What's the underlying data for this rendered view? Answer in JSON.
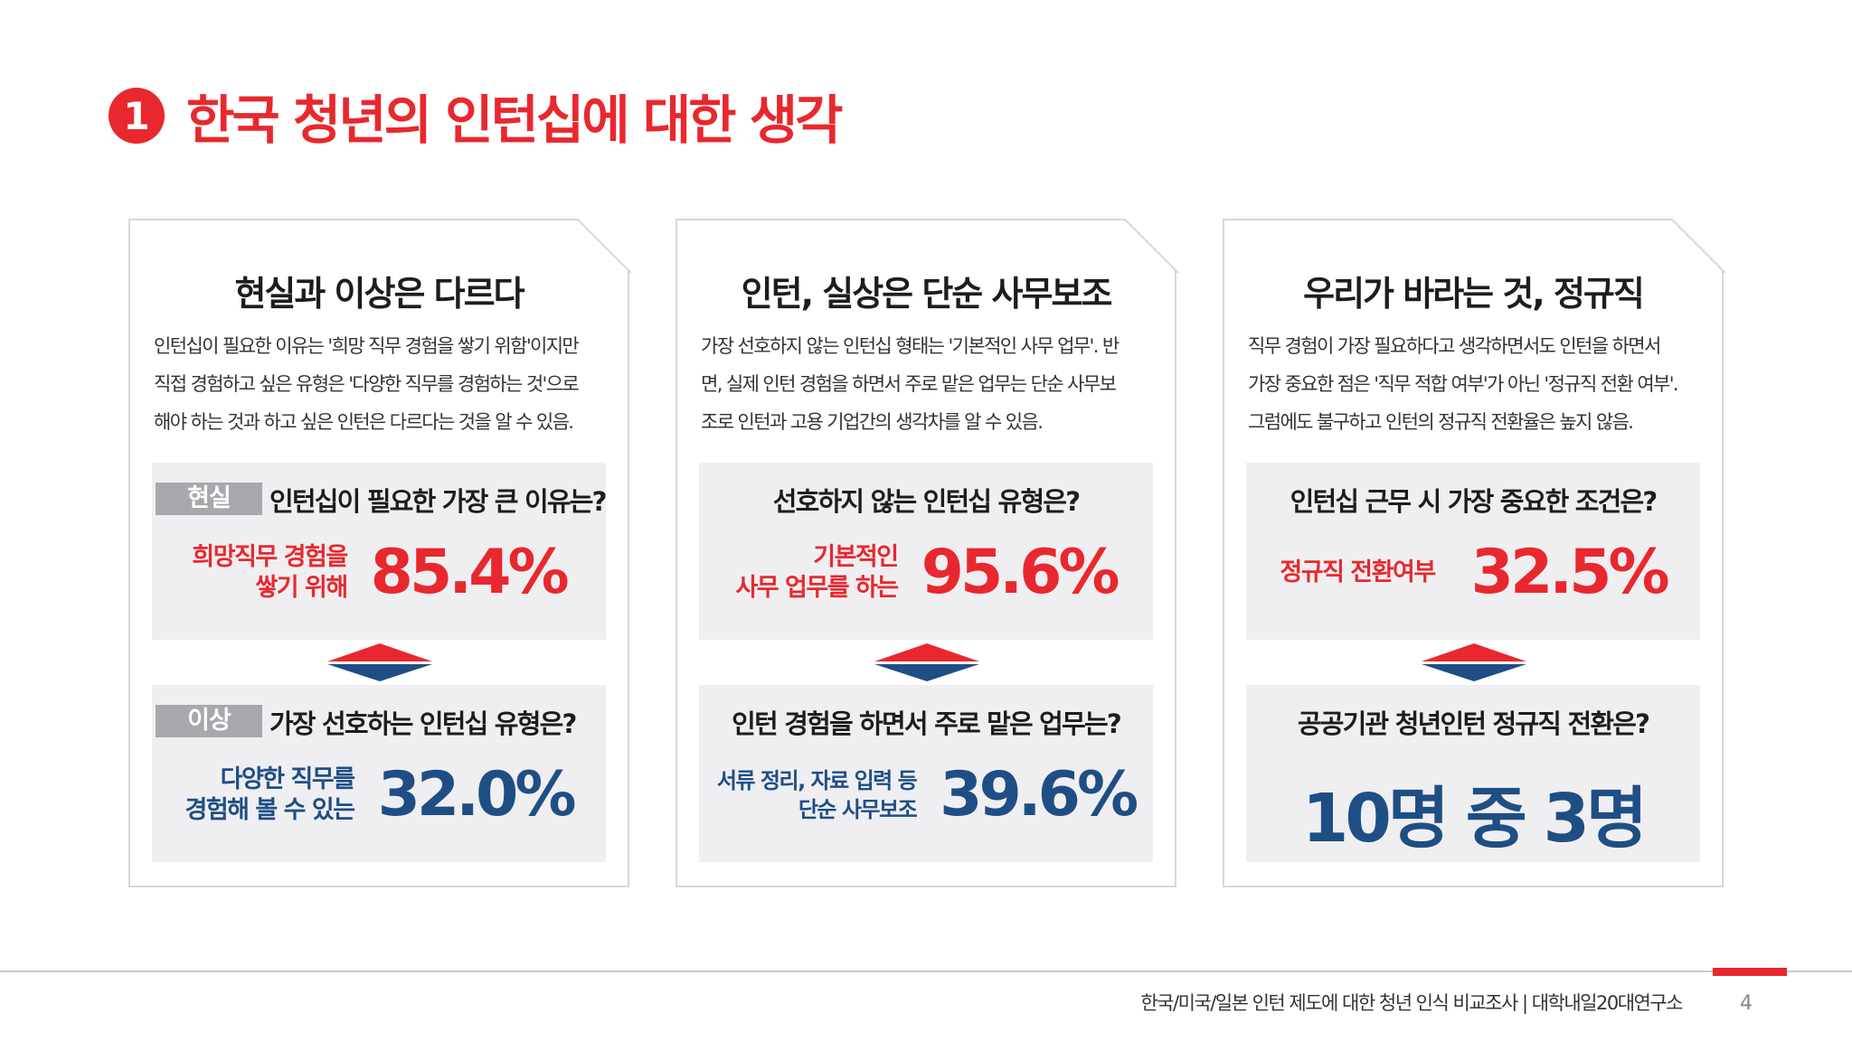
{
  "title": {
    "number": "1",
    "text": "한국 청년의 인턴십에 대한 생각"
  },
  "colors": {
    "accent_red": "#e8282e",
    "navy": "#1f4e84",
    "box_bg": "#efeff1",
    "tag_gray": "#a7a8ab"
  },
  "cards": [
    {
      "heading": "현실과 이상은 다르다",
      "desc": [
        "인턴십이 필요한 이유는 '희망 직무 경험을 쌓기 위함'이지만",
        "직접 경험하고 싶은 유형은 '다양한 직무를 경험하는 것'으로",
        "해야 하는 것과 하고 싶은 인턴은 다르다는 것을 알 수 있음."
      ],
      "top": {
        "tag": "현실",
        "question": "인턴십이 필요한 가장 큰 이유는?",
        "label": [
          "희망직무 경험을",
          "쌓기 위해"
        ],
        "value": "85.4%"
      },
      "bottom": {
        "tag": "이상",
        "question": "가장 선호하는 인턴십 유형은?",
        "label": [
          "다양한 직무를",
          "경험해 볼 수 있는"
        ],
        "value": "32.0%"
      }
    },
    {
      "heading": "인턴, 실상은 단순 사무보조",
      "desc": [
        "가장 선호하지 않는 인턴십 형태는 '기본적인 사무 업무'. 반",
        "면, 실제 인턴 경험을 하면서 주로 맡은 업무는 단순 사무보",
        "조로 인턴과 고용 기업간의 생각차를 알 수 있음."
      ],
      "top": {
        "question": "선호하지 않는 인턴십 유형은?",
        "label": [
          "기본적인",
          "사무 업무를 하는"
        ],
        "value": "95.6%"
      },
      "bottom": {
        "question": "인턴 경험을 하면서 주로 맡은 업무는?",
        "label": [
          "서류 정리, 자료 입력 등",
          "단순 사무보조"
        ],
        "value": "39.6%"
      }
    },
    {
      "heading": "우리가 바라는 것, 정규직",
      "desc": [
        "직무 경험이 가장 필요하다고 생각하면서도 인턴을 하면서",
        "가장 중요한 점은 '직무 적합 여부'가 아닌 '정규직 전환 여부'.",
        "그럼에도 불구하고 인턴의 정규직 전환율은 높지 않음."
      ],
      "top": {
        "question": "인턴십 근무 시 가장 중요한 조건은?",
        "label": [
          "정규직 전환여부"
        ],
        "value": "32.5%"
      },
      "bottom": {
        "question": "공공기관 청년인턴 정규직 전환은?",
        "value": "10명 중 3명"
      }
    }
  ],
  "footer": {
    "source": "한국/미국/일본 인턴 제도에 대한 청년 인식 비교조사 | 대학내일20대연구소",
    "page": "4"
  }
}
